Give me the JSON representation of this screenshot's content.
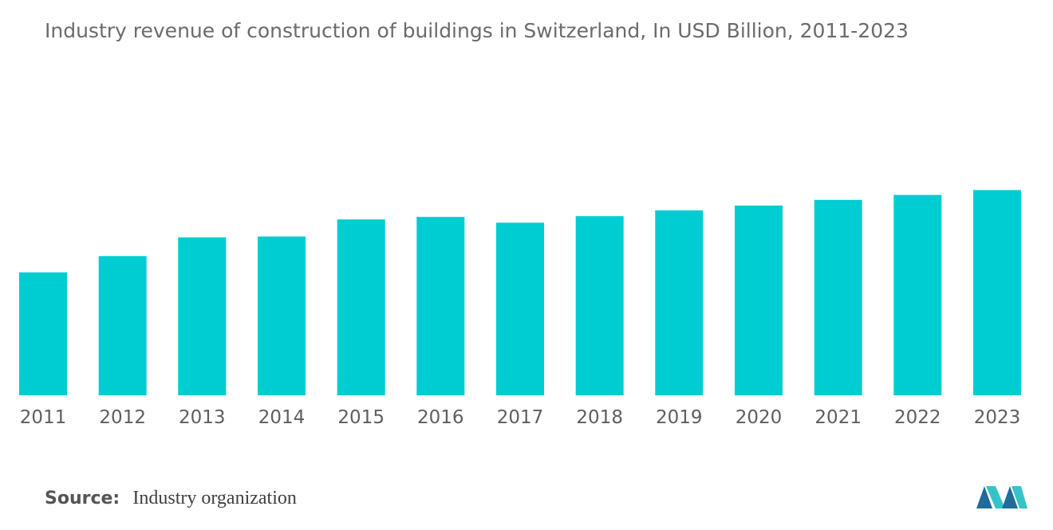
{
  "chart_data": {
    "type": "bar",
    "title": "Industry revenue of construction of buildings in Switzerland, In USD Billion, 2011-2023",
    "xlabel": "",
    "ylabel": "",
    "categories": [
      "2011",
      "2012",
      "2013",
      "2014",
      "2015",
      "2016",
      "2017",
      "2018",
      "2019",
      "2020",
      "2021",
      "2022",
      "2023"
    ],
    "values": [
      60.4,
      68.4,
      77.6,
      78.0,
      86.4,
      87.6,
      84.8,
      88.0,
      90.8,
      93.2,
      96.0,
      98.4,
      100.8
    ],
    "ylim": [
      0,
      110
    ],
    "grid": false,
    "legend": "none",
    "bar_color": "#00cdd1"
  },
  "footer": {
    "source_label": "Source:",
    "source_value": "Industry organization"
  },
  "logo": {
    "icon": "mordor-intelligence-logo-icon",
    "colors": [
      "#1f6b9a",
      "#35c3c7"
    ]
  }
}
